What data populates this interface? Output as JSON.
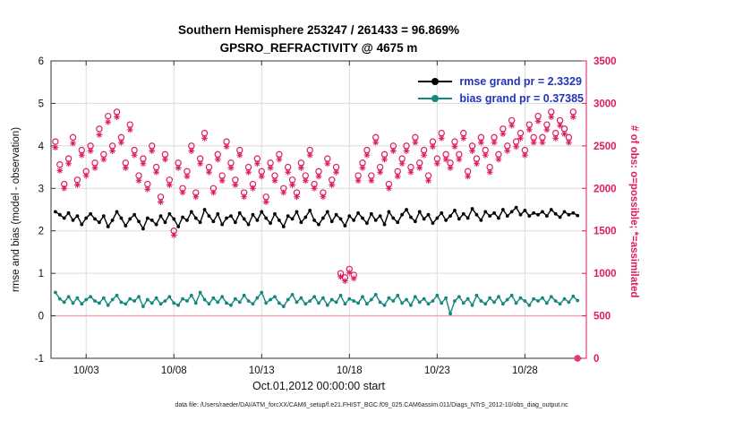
{
  "title_line1": "Southern Hemisphere 253247 / 261433 = 96.869%",
  "title_line2": "GPSRO_REFRACTIVITY @ 4675 m",
  "legend": {
    "rmse_label": "rmse grand pr = 2.3329",
    "bias_label": "bias grand pr = 0.37385"
  },
  "xlabel": "Oct.01,2012 00:00:00 start",
  "ylabel_left": "rmse and bias (model - observation)",
  "ylabel_right": "# of obs: o=possible; *=assimilated",
  "footer": "data file: /Users/raeder/DAI/ATM_forcXX/CAM6_setup/f.e21.FHIST_BGC.f09_025.CAM6assim.011/Diags_NTrS_2012-10/obs_diag_output.nc",
  "colors": {
    "obs": "#df1a62",
    "rmse": "#000000",
    "bias": "#12877d",
    "legend_text": "#2233bb",
    "grid": "#dcdcdc",
    "axis": "#333333",
    "zero_line": "#f2a0ac"
  },
  "chart_data": {
    "type": "line",
    "title": "Southern Hemisphere 253247 / 261433 = 96.869% | GPSRO_REFRACTIVITY @ 4675 m",
    "x_range_days": [
      0,
      30.5
    ],
    "x_start_label": "Oct.01,2012 00:00:00 start",
    "x_tick_days": [
      2,
      7,
      12,
      17,
      22,
      27
    ],
    "x_tick_labels": [
      "10/03",
      "10/08",
      "10/13",
      "10/18",
      "10/23",
      "10/28"
    ],
    "left_axis": {
      "range": [
        -1,
        6
      ],
      "ticks": [
        -1,
        0,
        1,
        2,
        3,
        4,
        5,
        6
      ],
      "label": "rmse and bias (model - observation)"
    },
    "right_axis": {
      "range": [
        0,
        3500
      ],
      "ticks": [
        0,
        500,
        1000,
        1500,
        2000,
        2500,
        3000,
        3500
      ],
      "label": "# of obs: o=possible; *=assimilated"
    },
    "grid": true,
    "legend_position": "top-right-inside",
    "x": {
      "start_day": 0.25,
      "step_day": 0.25,
      "count": 120
    },
    "series": [
      {
        "name": "rmse",
        "axis": "left",
        "style": "line-dot",
        "color_key": "rmse",
        "grand_mean": 2.3329,
        "values": [
          2.45,
          2.38,
          2.3,
          2.42,
          2.25,
          2.35,
          2.15,
          2.3,
          2.4,
          2.28,
          2.2,
          2.35,
          2.1,
          2.25,
          2.45,
          2.3,
          2.12,
          2.28,
          2.38,
          2.22,
          2.05,
          2.3,
          2.25,
          2.15,
          2.35,
          2.2,
          2.4,
          2.28,
          2.1,
          2.32,
          2.25,
          2.45,
          2.3,
          2.2,
          2.5,
          2.35,
          2.22,
          2.4,
          2.15,
          2.3,
          2.35,
          2.2,
          2.42,
          2.28,
          2.15,
          2.38,
          2.25,
          2.45,
          2.3,
          2.18,
          2.4,
          2.25,
          2.1,
          2.35,
          2.28,
          2.45,
          2.2,
          2.32,
          2.48,
          2.25,
          2.15,
          2.3,
          2.45,
          2.22,
          2.38,
          2.28,
          2.12,
          2.35,
          2.25,
          2.42,
          2.3,
          2.18,
          2.4,
          2.25,
          2.35,
          2.15,
          2.45,
          2.3,
          2.2,
          2.38,
          2.5,
          2.32,
          2.22,
          2.45,
          2.28,
          2.38,
          2.18,
          2.3,
          2.42,
          2.25,
          2.35,
          2.48,
          2.28,
          2.4,
          2.3,
          2.52,
          2.38,
          2.25,
          2.45,
          2.35,
          2.42,
          2.3,
          2.5,
          2.35,
          2.45,
          2.55,
          2.38,
          2.48,
          2.35,
          2.42,
          2.38,
          2.45,
          2.35,
          2.5,
          2.4,
          2.32,
          2.45,
          2.38,
          2.42,
          2.36
        ]
      },
      {
        "name": "bias",
        "axis": "left",
        "style": "line-dot",
        "color_key": "bias",
        "grand_mean": 0.37385,
        "values": [
          0.55,
          0.4,
          0.32,
          0.45,
          0.3,
          0.42,
          0.28,
          0.38,
          0.45,
          0.35,
          0.3,
          0.42,
          0.25,
          0.38,
          0.48,
          0.32,
          0.28,
          0.4,
          0.35,
          0.45,
          0.22,
          0.38,
          0.3,
          0.42,
          0.28,
          0.35,
          0.45,
          0.3,
          0.25,
          0.4,
          0.35,
          0.48,
          0.3,
          0.55,
          0.38,
          0.28,
          0.42,
          0.32,
          0.45,
          0.3,
          0.25,
          0.4,
          0.32,
          0.48,
          0.35,
          0.28,
          0.42,
          0.55,
          0.3,
          0.38,
          0.45,
          0.3,
          0.22,
          0.38,
          0.5,
          0.32,
          0.42,
          0.28,
          0.35,
          0.45,
          0.3,
          0.42,
          0.25,
          0.38,
          0.32,
          0.48,
          0.28,
          0.4,
          0.35,
          0.3,
          0.45,
          0.28,
          0.38,
          0.5,
          0.32,
          0.25,
          0.42,
          0.35,
          0.48,
          0.3,
          0.38,
          0.25,
          0.45,
          0.32,
          0.4,
          0.28,
          0.35,
          0.48,
          0.3,
          0.42,
          0.05,
          0.35,
          0.45,
          0.3,
          0.4,
          0.25,
          0.48,
          0.35,
          0.28,
          0.42,
          0.32,
          0.45,
          0.28,
          0.38,
          0.48,
          0.3,
          0.42,
          0.35,
          0.25,
          0.4,
          0.35,
          0.42,
          0.3,
          0.45,
          0.35,
          0.28,
          0.4,
          0.32,
          0.46,
          0.36
        ]
      },
      {
        "name": "obs_possible",
        "axis": "right",
        "style": "circle",
        "color_key": "obs",
        "values": [
          2550,
          2280,
          2050,
          2350,
          2600,
          2100,
          2450,
          2200,
          2500,
          2300,
          2700,
          2400,
          2850,
          2500,
          2900,
          2600,
          2300,
          2750,
          2450,
          2150,
          2350,
          2050,
          2500,
          2250,
          1900,
          2400,
          2100,
          1500,
          2300,
          2000,
          2200,
          2500,
          1950,
          2350,
          2650,
          2250,
          2000,
          2400,
          2150,
          2550,
          2300,
          2100,
          2450,
          1950,
          2250,
          2050,
          2350,
          2200,
          1900,
          2300,
          2150,
          2400,
          2000,
          2250,
          2100,
          1950,
          2300,
          2150,
          2450,
          2050,
          2200,
          1950,
          2350,
          2100,
          2250,
          1000,
          950,
          1050,
          980,
          2150,
          2300,
          2450,
          2150,
          2600,
          2250,
          2400,
          2050,
          2500,
          2200,
          2350,
          2500,
          2250,
          2600,
          2300,
          2450,
          2150,
          2550,
          2350,
          2650,
          2400,
          2300,
          2550,
          2400,
          2650,
          2200,
          2500,
          2350,
          2600,
          2450,
          2250,
          2600,
          2400,
          2700,
          2500,
          2800,
          2550,
          2650,
          2450,
          2750,
          2600,
          2850,
          2600,
          2750,
          2900,
          2650,
          2800,
          2700,
          2600,
          2900,
          0
        ]
      },
      {
        "name": "obs_assimilated",
        "axis": "right",
        "style": "asterisk",
        "color_key": "obs",
        "values": [
          2480,
          2210,
          2000,
          2290,
          2530,
          2040,
          2390,
          2150,
          2440,
          2240,
          2630,
          2340,
          2780,
          2440,
          2840,
          2540,
          2240,
          2690,
          2390,
          2090,
          2290,
          1990,
          2440,
          2190,
          1840,
          2340,
          2040,
          1450,
          2240,
          1950,
          2140,
          2440,
          1900,
          2290,
          2590,
          2190,
          1950,
          2340,
          2090,
          2490,
          2240,
          2040,
          2390,
          1900,
          2190,
          2000,
          2290,
          2140,
          1840,
          2240,
          2090,
          2340,
          1950,
          2190,
          2040,
          1900,
          2240,
          2090,
          2390,
          2000,
          2140,
          1900,
          2290,
          2040,
          2190,
          960,
          910,
          1010,
          940,
          2090,
          2240,
          2390,
          2090,
          2540,
          2190,
          2340,
          2000,
          2440,
          2140,
          2290,
          2440,
          2190,
          2540,
          2240,
          2390,
          2090,
          2490,
          2290,
          2590,
          2340,
          2240,
          2490,
          2340,
          2590,
          2140,
          2440,
          2290,
          2540,
          2390,
          2190,
          2540,
          2340,
          2640,
          2440,
          2740,
          2490,
          2590,
          2390,
          2690,
          2540,
          2790,
          2540,
          2690,
          2840,
          2590,
          2740,
          2640,
          2540,
          2840,
          0
        ]
      }
    ],
    "zero_reference_line": {
      "value": 0,
      "axis": "left",
      "color_key": "zero_line"
    }
  }
}
